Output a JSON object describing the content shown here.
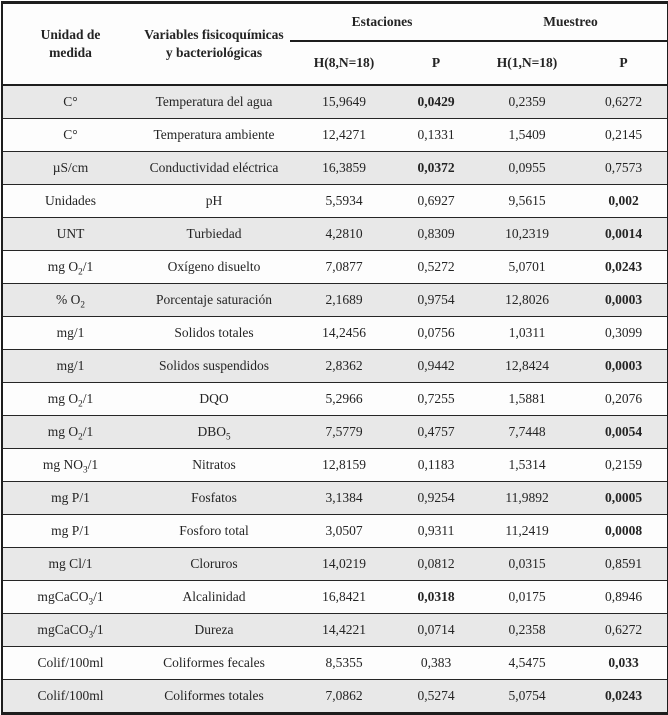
{
  "table": {
    "header": {
      "unit_header": "Unidad de\nmedida",
      "variables_header": "Variables fisicoquímicas\ny bacteriológicas",
      "groups": [
        {
          "label": "Estaciones",
          "sub": [
            "H(8,N=18)",
            "P"
          ]
        },
        {
          "label": "Muestreo",
          "sub": [
            "H(1,N=18)",
            "P"
          ]
        }
      ]
    },
    "rows": [
      {
        "unit": "C°",
        "variable": "Temperatura del agua",
        "est_h": "15,9649",
        "est_p": "0,0429",
        "est_p_bold": true,
        "mue_h": "0,2359",
        "mue_p": "0,6272",
        "mue_p_bold": false
      },
      {
        "unit": "C°",
        "variable": "Temperatura ambiente",
        "est_h": "12,4271",
        "est_p": "0,1331",
        "est_p_bold": false,
        "mue_h": "1,5409",
        "mue_p": "0,2145",
        "mue_p_bold": false
      },
      {
        "unit": "µS/cm",
        "variable": "Conductividad eléctrica",
        "est_h": "16,3859",
        "est_p": "0,0372",
        "est_p_bold": true,
        "mue_h": "0,0955",
        "mue_p": "0,7573",
        "mue_p_bold": false
      },
      {
        "unit": "Unidades",
        "variable": "pH",
        "est_h": "5,5934",
        "est_p": "0,6927",
        "est_p_bold": false,
        "mue_h": "9,5615",
        "mue_p": "0,002",
        "mue_p_bold": true
      },
      {
        "unit": "UNT",
        "variable": "Turbiedad",
        "est_h": "4,2810",
        "est_p": "0,8309",
        "est_p_bold": false,
        "mue_h": "10,2319",
        "mue_p": "0,0014",
        "mue_p_bold": true
      },
      {
        "unit": "mg O₂/1",
        "variable": "Oxígeno disuelto",
        "est_h": "7,0877",
        "est_p": "0,5272",
        "est_p_bold": false,
        "mue_h": "5,0701",
        "mue_p": "0,0243",
        "mue_p_bold": true
      },
      {
        "unit": "% O₂",
        "variable": "Porcentaje saturación",
        "est_h": "2,1689",
        "est_p": "0,9754",
        "est_p_bold": false,
        "mue_h": "12,8026",
        "mue_p": "0,0003",
        "mue_p_bold": true
      },
      {
        "unit": "mg/1",
        "variable": "Solidos totales",
        "est_h": "14,2456",
        "est_p": "0,0756",
        "est_p_bold": false,
        "mue_h": "1,0311",
        "mue_p": "0,3099",
        "mue_p_bold": false
      },
      {
        "unit": "mg/1",
        "variable": "Solidos suspendidos",
        "est_h": "2,8362",
        "est_p": "0,9442",
        "est_p_bold": false,
        "mue_h": "12,8424",
        "mue_p": "0,0003",
        "mue_p_bold": true
      },
      {
        "unit": "mg O₂/1",
        "variable": "DQO",
        "est_h": "5,2966",
        "est_p": "0,7255",
        "est_p_bold": false,
        "mue_h": "1,5881",
        "mue_p": "0,2076",
        "mue_p_bold": false
      },
      {
        "unit": "mg O₂/1",
        "variable": "DBO₅",
        "est_h": "7,5779",
        "est_p": "0,4757",
        "est_p_bold": false,
        "mue_h": "7,7448",
        "mue_p": "0,0054",
        "mue_p_bold": true
      },
      {
        "unit": "mg NO₃/1",
        "variable": "Nitratos",
        "est_h": "12,8159",
        "est_p": "0,1183",
        "est_p_bold": false,
        "mue_h": "1,5314",
        "mue_p": "0,2159",
        "mue_p_bold": false
      },
      {
        "unit": "mg P/1",
        "variable": "Fosfatos",
        "est_h": "3,1384",
        "est_p": "0,9254",
        "est_p_bold": false,
        "mue_h": "11,9892",
        "mue_p": "0,0005",
        "mue_p_bold": true
      },
      {
        "unit": "mg P/1",
        "variable": "Fosforo total",
        "est_h": "3,0507",
        "est_p": "0,9311",
        "est_p_bold": false,
        "mue_h": "11,2419",
        "mue_p": "0,0008",
        "mue_p_bold": true
      },
      {
        "unit": "mg Cl/1",
        "variable": "Cloruros",
        "est_h": "14,0219",
        "est_p": "0,0812",
        "est_p_bold": false,
        "mue_h": "0,0315",
        "mue_p": "0,8591",
        "mue_p_bold": false
      },
      {
        "unit": "mgCaCO₃/1",
        "variable": "Alcalinidad",
        "est_h": "16,8421",
        "est_p": "0,0318",
        "est_p_bold": true,
        "mue_h": "0,0175",
        "mue_p": "0,8946",
        "mue_p_bold": false
      },
      {
        "unit": "mgCaCO₃/1",
        "variable": "Dureza",
        "est_h": "14,4221",
        "est_p": "0,0714",
        "est_p_bold": false,
        "mue_h": "0,2358",
        "mue_p": "0,6272",
        "mue_p_bold": false
      },
      {
        "unit": "Colif/100ml",
        "variable": "Coliformes fecales",
        "est_h": "8,5355",
        "est_p": "0,383",
        "est_p_bold": false,
        "mue_h": "4,5475",
        "mue_p": "0,033",
        "mue_p_bold": true
      },
      {
        "unit": "Colif/100ml",
        "variable": "Coliformes totales",
        "est_h": "7,0862",
        "est_p": "0,5274",
        "est_p_bold": false,
        "mue_h": "5,0754",
        "mue_p": "0,0243",
        "mue_p_bold": true
      }
    ]
  },
  "colors": {
    "shaded_row": "#e8e8e8",
    "border": "#1d1d1d",
    "text": "#242424"
  }
}
